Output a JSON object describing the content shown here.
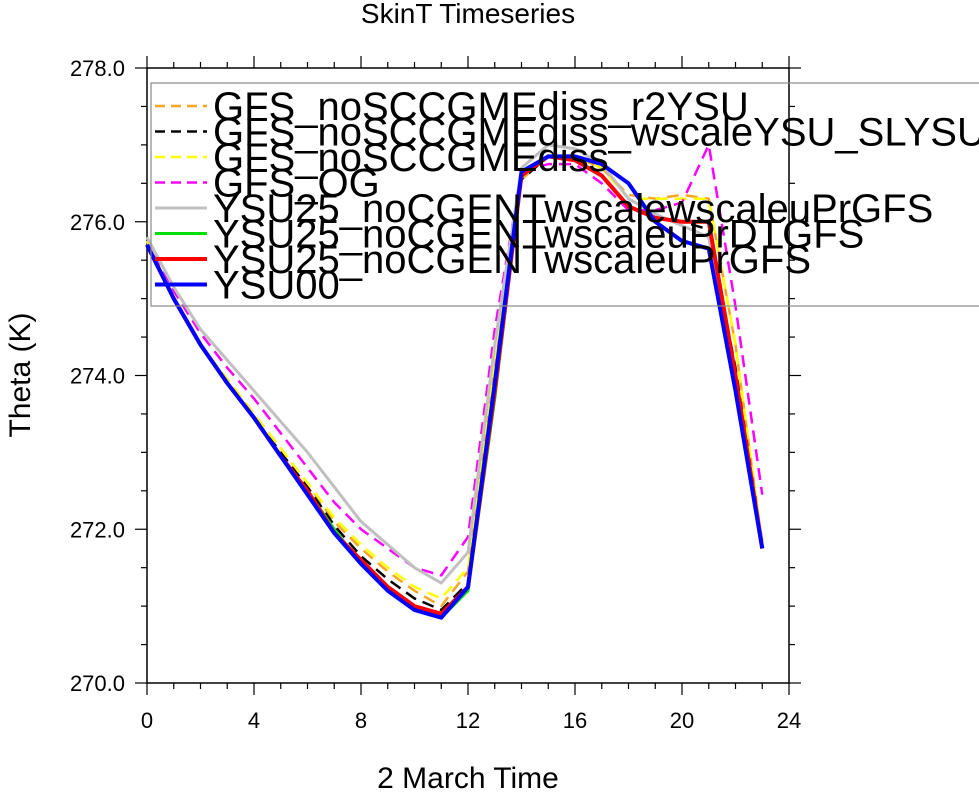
{
  "chart_data": {
    "type": "line",
    "title": "SkinT Timeseries",
    "xlabel": "2 March Time",
    "ylabel": "Theta (K)",
    "xlim": [
      0,
      24
    ],
    "ylim": [
      270.0,
      278.0
    ],
    "x_ticks": [
      0,
      4,
      8,
      12,
      16,
      20,
      24
    ],
    "y_ticks": [
      "270.0",
      "272.0",
      "274.0",
      "276.0",
      "278.0"
    ],
    "grid": false,
    "legend_position": "top-right",
    "x": [
      0,
      1,
      2,
      3,
      4,
      5,
      6,
      7,
      8,
      9,
      10,
      11,
      12,
      13,
      14,
      15,
      16,
      17,
      18,
      19,
      20,
      21,
      22,
      23
    ],
    "series": [
      {
        "name": "GFS_noSCCGMEdiss_r2YSU",
        "color": "#f5a623",
        "dash": true,
        "width": 2.5,
        "values": [
          275.75,
          275.0,
          274.4,
          273.95,
          273.5,
          273.05,
          272.6,
          272.1,
          271.75,
          271.45,
          271.2,
          271.0,
          271.45,
          274.1,
          276.55,
          276.85,
          276.85,
          276.7,
          276.35,
          276.3,
          276.35,
          276.3,
          274.4,
          271.8
        ]
      },
      {
        "name": "GFS_noSCCGMEdiss_wscaleYSU_SLYSU",
        "color": "#000000",
        "dash": true,
        "width": 2.5,
        "values": [
          275.7,
          275.0,
          274.4,
          273.9,
          273.45,
          273.0,
          272.55,
          272.05,
          271.65,
          271.35,
          271.1,
          270.95,
          271.3,
          273.95,
          276.55,
          276.85,
          276.8,
          276.6,
          276.2,
          276.05,
          276.0,
          275.9,
          274.1,
          271.8
        ]
      },
      {
        "name": "GFS_noSCCGMEdiss",
        "color": "#ffff00",
        "dash": true,
        "width": 2.5,
        "values": [
          275.75,
          275.0,
          274.4,
          273.95,
          273.5,
          273.05,
          272.6,
          272.15,
          271.8,
          271.5,
          271.25,
          271.1,
          271.5,
          274.15,
          276.6,
          276.85,
          276.85,
          276.7,
          276.3,
          276.3,
          276.3,
          276.3,
          274.4,
          271.8
        ]
      },
      {
        "name": "GFS_OG",
        "color": "#ff00ff",
        "dash": true,
        "width": 2.5,
        "values": [
          275.8,
          275.1,
          274.55,
          274.1,
          273.7,
          273.25,
          272.8,
          272.35,
          272.0,
          271.75,
          271.5,
          271.4,
          271.9,
          274.6,
          276.65,
          276.75,
          276.75,
          276.5,
          276.15,
          276.15,
          276.25,
          277.0,
          274.9,
          272.45
        ]
      },
      {
        "name": "YSU25_noCGENTwscalewscaleuPrGFS",
        "color": "#c0c0c0",
        "dash": false,
        "width": 3,
        "values": [
          275.8,
          275.15,
          274.6,
          274.2,
          273.8,
          273.4,
          273.0,
          272.55,
          272.1,
          271.8,
          271.5,
          271.3,
          271.7,
          274.4,
          276.7,
          277.0,
          276.95,
          276.75,
          276.3,
          276.1,
          275.95,
          275.8,
          273.8,
          271.85
        ]
      },
      {
        "name": "YSU25_noCGENTwscaleuPrDTGFS",
        "color": "#00dd00",
        "dash": false,
        "width": 3,
        "values": [
          275.7,
          275.0,
          274.4,
          273.9,
          273.45,
          272.95,
          272.5,
          272.0,
          271.55,
          271.2,
          270.95,
          270.85,
          271.2,
          273.7,
          276.6,
          276.85,
          276.8,
          276.6,
          276.2,
          276.05,
          276.0,
          276.0,
          274.0,
          271.75
        ]
      },
      {
        "name": "YSU25_noCGENTwscaleuPrGFS",
        "color": "#ff0000",
        "dash": false,
        "width": 4,
        "values": [
          275.7,
          275.0,
          274.4,
          273.9,
          273.45,
          272.95,
          272.5,
          271.95,
          271.6,
          271.25,
          271.0,
          270.9,
          271.25,
          273.8,
          276.6,
          276.85,
          276.8,
          276.6,
          276.2,
          276.05,
          276.0,
          276.0,
          274.0,
          271.75
        ]
      },
      {
        "name": "YSU00",
        "color": "#0000ff",
        "dash": false,
        "width": 4,
        "values": [
          275.7,
          275.0,
          274.4,
          273.9,
          273.45,
          272.95,
          272.45,
          271.95,
          271.55,
          271.2,
          270.95,
          270.85,
          271.25,
          273.9,
          276.65,
          276.85,
          276.85,
          276.75,
          276.5,
          276.0,
          275.75,
          275.65,
          273.8,
          271.75
        ]
      }
    ]
  }
}
